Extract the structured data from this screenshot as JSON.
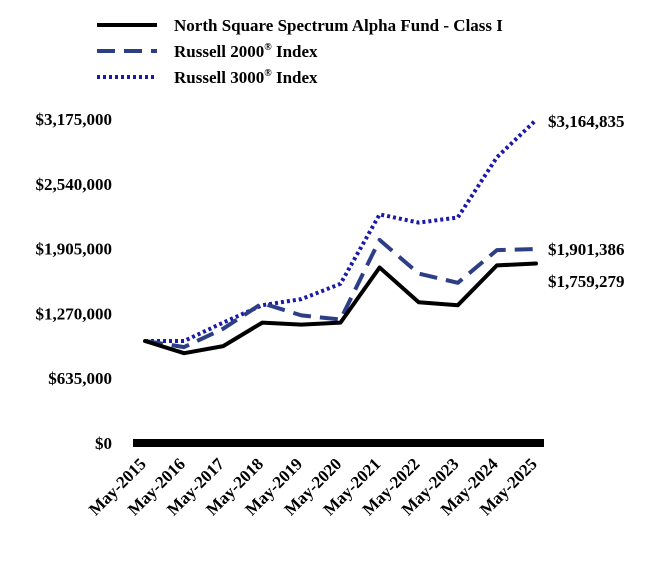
{
  "chart_data": {
    "type": "line",
    "title": "",
    "xlabel": "",
    "ylabel": "",
    "categories": [
      "May-2015",
      "May-2016",
      "May-2017",
      "May-2018",
      "May-2019",
      "May-2020",
      "May-2021",
      "May-2022",
      "May-2023",
      "May-2024",
      "May-2025"
    ],
    "ylim": [
      0,
      3175000
    ],
    "yticks": [
      "$0",
      "$635,000",
      "$1,270,000",
      "$1,905,000",
      "$2,540,000",
      "$3,175,000"
    ],
    "ytick_values": [
      0,
      635000,
      1270000,
      1905000,
      2540000,
      3175000
    ],
    "grid": false,
    "legend_position": "top",
    "series": [
      {
        "name": "North Square Spectrum Alpha Fund - Class I",
        "color": "#000000",
        "style": "solid",
        "values": [
          1000000,
          880000,
          950000,
          1180000,
          1160000,
          1180000,
          1720000,
          1380000,
          1350000,
          1740000,
          1759279
        ],
        "end_label": "$1,759,279"
      },
      {
        "name": "Russell 2000",
        "name_sup": "®",
        "name_suffix": " Index",
        "color": "#2c3e86",
        "style": "dashed",
        "values": [
          1000000,
          940000,
          1120000,
          1370000,
          1250000,
          1210000,
          1990000,
          1660000,
          1570000,
          1890000,
          1901386
        ],
        "end_label": "$1,901,386"
      },
      {
        "name": "Russell 3000",
        "name_sup": "®",
        "name_suffix": " Index",
        "color": "#1a1aaa",
        "style": "dotted",
        "values": [
          1000000,
          1000000,
          1180000,
          1350000,
          1410000,
          1560000,
          2240000,
          2160000,
          2210000,
          2800000,
          3164835
        ],
        "end_label": "$3,164,835"
      }
    ]
  }
}
